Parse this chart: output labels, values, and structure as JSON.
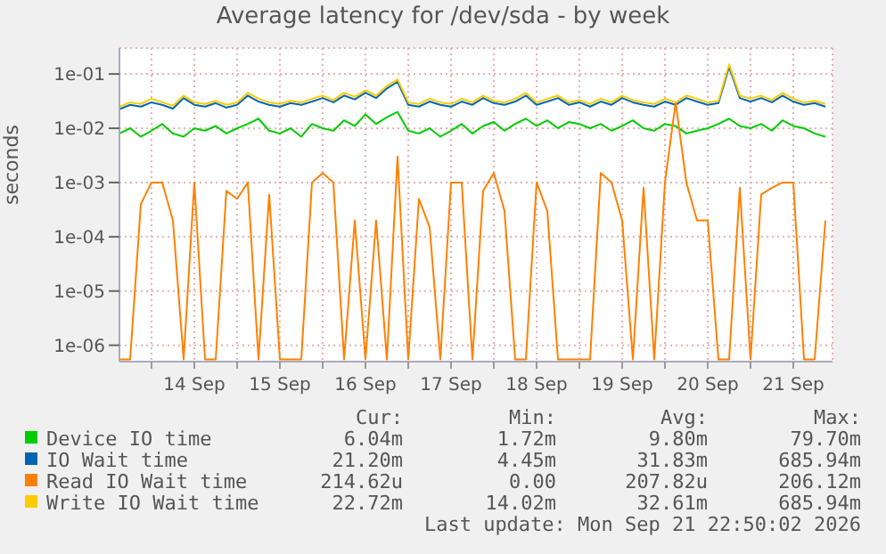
{
  "chart_data": {
    "type": "line",
    "title": "Average latency for /dev/sda - by week",
    "ylabel": "seconds",
    "log": true,
    "grid": true,
    "legend": "bottom",
    "marker": "none",
    "line_style": "solid",
    "ylim": [
      5e-07,
      0.3
    ],
    "yticks": [
      {
        "value": 1e-06,
        "label": "1e-06"
      },
      {
        "value": 1e-05,
        "label": "1e-05"
      },
      {
        "value": 0.0001,
        "label": "1e-04"
      },
      {
        "value": 0.001,
        "label": "1e-03"
      },
      {
        "value": 0.01,
        "label": "1e-02"
      },
      {
        "value": 0.1,
        "label": "1e-01"
      }
    ],
    "xlim": [
      "2026-09-13T15:00",
      "2026-09-21T23:00"
    ],
    "xticks": [
      {
        "value": "2026-09-14T00:00",
        "label": null
      },
      {
        "value": "2026-09-14T12:00",
        "label": "14 Sep"
      },
      {
        "value": "2026-09-15T00:00",
        "label": null
      },
      {
        "value": "2026-09-15T12:00",
        "label": "15 Sep"
      },
      {
        "value": "2026-09-16T00:00",
        "label": null
      },
      {
        "value": "2026-09-16T12:00",
        "label": "16 Sep"
      },
      {
        "value": "2026-09-17T00:00",
        "label": null
      },
      {
        "value": "2026-09-17T12:00",
        "label": "17 Sep"
      },
      {
        "value": "2026-09-18T00:00",
        "label": null
      },
      {
        "value": "2026-09-18T12:00",
        "label": "18 Sep"
      },
      {
        "value": "2026-09-19T00:00",
        "label": null
      },
      {
        "value": "2026-09-19T12:00",
        "label": "19 Sep"
      },
      {
        "value": "2026-09-20T00:00",
        "label": null
      },
      {
        "value": "2026-09-20T12:00",
        "label": "20 Sep"
      },
      {
        "value": "2026-09-21T00:00",
        "label": null
      },
      {
        "value": "2026-09-21T12:00",
        "label": "21 Sep"
      }
    ],
    "x": [
      "2026-09-13T15:00",
      "2026-09-13T18:00",
      "2026-09-13T21:00",
      "2026-09-14T00:00",
      "2026-09-14T03:00",
      "2026-09-14T06:00",
      "2026-09-14T09:00",
      "2026-09-14T12:00",
      "2026-09-14T15:00",
      "2026-09-14T18:00",
      "2026-09-14T21:00",
      "2026-09-15T00:00",
      "2026-09-15T03:00",
      "2026-09-15T06:00",
      "2026-09-15T09:00",
      "2026-09-15T12:00",
      "2026-09-15T15:00",
      "2026-09-15T18:00",
      "2026-09-15T21:00",
      "2026-09-16T00:00",
      "2026-09-16T03:00",
      "2026-09-16T06:00",
      "2026-09-16T09:00",
      "2026-09-16T12:00",
      "2026-09-16T15:00",
      "2026-09-16T18:00",
      "2026-09-16T21:00",
      "2026-09-17T00:00",
      "2026-09-17T03:00",
      "2026-09-17T06:00",
      "2026-09-17T09:00",
      "2026-09-17T12:00",
      "2026-09-17T15:00",
      "2026-09-17T18:00",
      "2026-09-17T21:00",
      "2026-09-18T00:00",
      "2026-09-18T03:00",
      "2026-09-18T06:00",
      "2026-09-18T09:00",
      "2026-09-18T12:00",
      "2026-09-18T15:00",
      "2026-09-18T18:00",
      "2026-09-18T21:00",
      "2026-09-19T00:00",
      "2026-09-19T03:00",
      "2026-09-19T06:00",
      "2026-09-19T09:00",
      "2026-09-19T12:00",
      "2026-09-19T15:00",
      "2026-09-19T18:00",
      "2026-09-19T21:00",
      "2026-09-20T00:00",
      "2026-09-20T03:00",
      "2026-09-20T06:00",
      "2026-09-20T09:00",
      "2026-09-20T12:00",
      "2026-09-20T15:00",
      "2026-09-20T18:00",
      "2026-09-20T21:00",
      "2026-09-21T00:00",
      "2026-09-21T03:00",
      "2026-09-21T06:00",
      "2026-09-21T09:00",
      "2026-09-21T12:00",
      "2026-09-21T15:00",
      "2026-09-21T18:00",
      "2026-09-21T21:00"
    ],
    "series": [
      {
        "name": "Device IO time",
        "color": "#00cc00",
        "values": [
          0.008,
          0.01,
          0.007,
          0.009,
          0.012,
          0.008,
          0.007,
          0.01,
          0.009,
          0.011,
          0.008,
          0.01,
          0.012,
          0.015,
          0.009,
          0.008,
          0.01,
          0.007,
          0.012,
          0.01,
          0.009,
          0.014,
          0.011,
          0.018,
          0.012,
          0.016,
          0.02,
          0.009,
          0.008,
          0.01,
          0.007,
          0.009,
          0.012,
          0.008,
          0.011,
          0.013,
          0.009,
          0.012,
          0.015,
          0.011,
          0.014,
          0.01,
          0.013,
          0.012,
          0.01,
          0.012,
          0.009,
          0.011,
          0.014,
          0.01,
          0.009,
          0.012,
          0.011,
          0.008,
          0.009,
          0.01,
          0.012,
          0.015,
          0.011,
          0.01,
          0.012,
          0.009,
          0.014,
          0.011,
          0.01,
          0.008,
          0.007
        ]
      },
      {
        "name": "IO Wait time",
        "color": "#0066b3",
        "values": [
          0.0225,
          0.027,
          0.025,
          0.03,
          0.027,
          0.023,
          0.036,
          0.027,
          0.025,
          0.029,
          0.024,
          0.027,
          0.04,
          0.031,
          0.027,
          0.025,
          0.029,
          0.027,
          0.031,
          0.036,
          0.03,
          0.04,
          0.034,
          0.045,
          0.036,
          0.054,
          0.072,
          0.027,
          0.025,
          0.031,
          0.027,
          0.025,
          0.031,
          0.027,
          0.036,
          0.029,
          0.027,
          0.031,
          0.04,
          0.027,
          0.031,
          0.036,
          0.027,
          0.03,
          0.025,
          0.031,
          0.027,
          0.036,
          0.03,
          0.027,
          0.025,
          0.031,
          0.027,
          0.036,
          0.031,
          0.027,
          0.029,
          0.135,
          0.036,
          0.031,
          0.036,
          0.03,
          0.04,
          0.031,
          0.027,
          0.029,
          0.025
        ]
      },
      {
        "name": "Read IO Wait time",
        "color": "#ff8000",
        "values": [
          5.5e-07,
          5.5e-07,
          0.0004,
          0.001,
          0.001,
          0.0002,
          5.5e-07,
          0.001,
          5.5e-07,
          5.5e-07,
          0.0007,
          0.0005,
          0.001,
          5.5e-07,
          0.0006,
          5.5e-07,
          5.5e-07,
          5.5e-07,
          0.001,
          0.0015,
          0.001,
          5.5e-07,
          0.0002,
          5.5e-07,
          0.0002,
          5.5e-07,
          0.003,
          5.5e-07,
          0.0005,
          0.00015,
          5.5e-07,
          0.001,
          0.001,
          5.5e-07,
          0.0007,
          0.0015,
          0.0003,
          5.5e-07,
          5.5e-07,
          0.001,
          0.0003,
          5.5e-07,
          5.5e-07,
          5.5e-07,
          5.5e-07,
          0.0015,
          0.001,
          0.0002,
          5.5e-07,
          0.0008,
          5.5e-07,
          0.001,
          0.03,
          0.001,
          0.0002,
          0.0002,
          5.5e-07,
          5.5e-07,
          0.0008,
          5.5e-07,
          0.0006,
          0.0008,
          0.001,
          0.001,
          5.5e-07,
          5.5e-07,
          0.0002
        ]
      },
      {
        "name": "Write IO Wait time",
        "color": "#ffcc00",
        "values": [
          0.025,
          0.03,
          0.028,
          0.035,
          0.03,
          0.026,
          0.04,
          0.03,
          0.028,
          0.032,
          0.027,
          0.03,
          0.045,
          0.035,
          0.03,
          0.028,
          0.032,
          0.03,
          0.035,
          0.04,
          0.033,
          0.045,
          0.038,
          0.05,
          0.04,
          0.06,
          0.08,
          0.03,
          0.028,
          0.035,
          0.03,
          0.028,
          0.035,
          0.03,
          0.04,
          0.032,
          0.03,
          0.035,
          0.045,
          0.03,
          0.035,
          0.04,
          0.03,
          0.033,
          0.028,
          0.035,
          0.03,
          0.04,
          0.033,
          0.03,
          0.028,
          0.035,
          0.03,
          0.04,
          0.035,
          0.03,
          0.032,
          0.15,
          0.04,
          0.035,
          0.04,
          0.033,
          0.045,
          0.035,
          0.03,
          0.032,
          0.028
        ]
      }
    ],
    "annotations": [
      "Cur:",
      "Min:",
      "Avg:",
      "Max:",
      "6.04m",
      "1.72m",
      "9.80m",
      "79.70m",
      "21.20m",
      "4.45m",
      "31.83m",
      "685.94m",
      "214.62u",
      "0.00",
      "207.82u",
      "206.12m",
      "22.72m",
      "14.02m",
      "32.61m",
      "685.94m",
      "Last update: Mon Sep 21 22:50:02 2026"
    ]
  }
}
